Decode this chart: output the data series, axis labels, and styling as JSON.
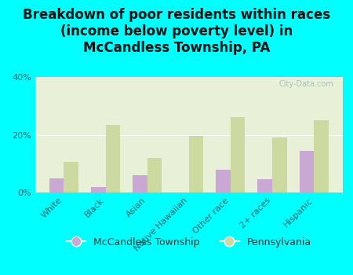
{
  "title": "Breakdown of poor residents within races\n(income below poverty level) in\nMcCandless Township, PA",
  "categories": [
    "White",
    "Black",
    "Asian",
    "Native Hawaiian",
    "Other race",
    "2+ races",
    "Hispanic"
  ],
  "mccandless_values": [
    5.0,
    2.0,
    6.0,
    0.0,
    8.0,
    4.5,
    14.5
  ],
  "pennsylvania_values": [
    10.5,
    23.5,
    12.0,
    19.5,
    26.0,
    19.0,
    25.0
  ],
  "mccandless_color": "#c9a8d4",
  "pennsylvania_color": "#ccd9a0",
  "bg_outer": "#00ffff",
  "bg_chart": "#e8f0d8",
  "ylim": [
    0,
    40
  ],
  "yticks": [
    0,
    20,
    40
  ],
  "ytick_labels": [
    "0%",
    "20%",
    "40%"
  ],
  "watermark": "City-Data.com",
  "legend_mccandless": "McCandless Township",
  "legend_pennsylvania": "Pennsylvania",
  "title_fontsize": 12,
  "tick_fontsize": 8,
  "legend_fontsize": 9
}
